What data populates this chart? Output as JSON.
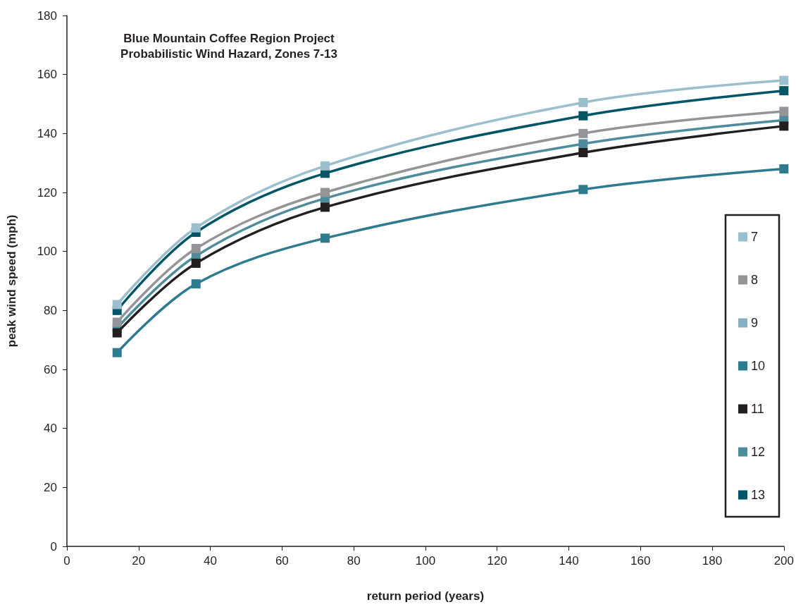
{
  "chart_data": {
    "type": "line",
    "title": "Blue Mountain Coffee Region Project\nProbabilistic Wind Hazard, Zones 7-13",
    "xlabel": "return period (years)",
    "ylabel": "peak wind speed (mph)",
    "x": [
      14,
      36,
      72,
      144,
      200
    ],
    "series": [
      {
        "name": "7",
        "color": "#9bbfcc",
        "values": [
          82,
          108,
          129,
          150.5,
          158
        ]
      },
      {
        "name": "8",
        "color": "#939598",
        "values": [
          76,
          101,
          120,
          140,
          147.5
        ]
      },
      {
        "name": "9",
        "color": "#86afbf",
        "values": [
          null,
          null,
          null,
          null,
          null
        ]
      },
      {
        "name": "10",
        "color": "#2e7b8f",
        "values": [
          65.7,
          89,
          104.5,
          121,
          128
        ]
      },
      {
        "name": "11",
        "color": "#231f20",
        "values": [
          72.4,
          96,
          115,
          133.5,
          142.5
        ]
      },
      {
        "name": "12",
        "color": "#4e8c9c",
        "values": [
          74,
          98.5,
          118,
          136.5,
          144.5
        ]
      },
      {
        "name": "13",
        "color": "#005566",
        "values": [
          80,
          106.5,
          126.5,
          146,
          154.5
        ]
      }
    ],
    "xlim": [
      0,
      200
    ],
    "xticks": [
      0,
      20,
      40,
      60,
      80,
      100,
      120,
      140,
      160,
      180,
      200
    ],
    "ylim": [
      0,
      180
    ],
    "yticks": [
      0,
      20,
      40,
      60,
      80,
      100,
      120,
      140,
      160,
      180
    ],
    "grid": false,
    "legend": "right",
    "marker": "square",
    "line_style": "solid"
  }
}
